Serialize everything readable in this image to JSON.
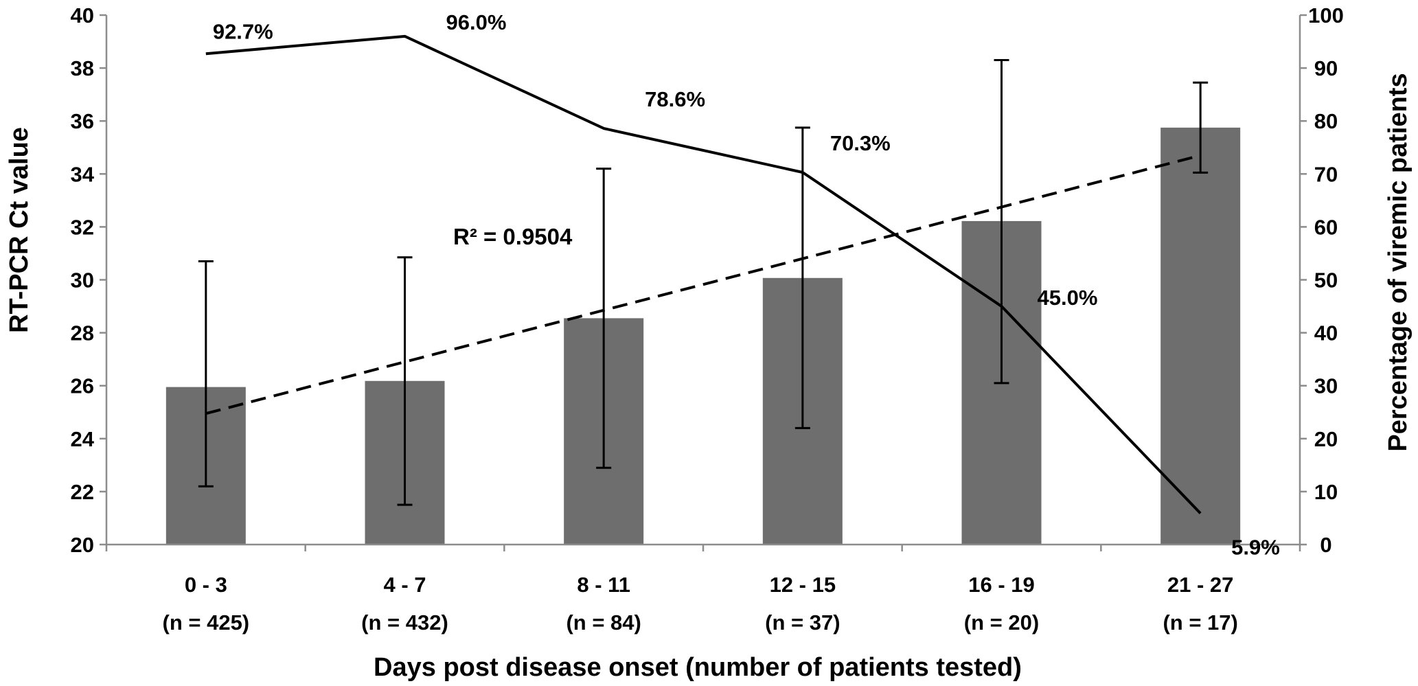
{
  "chart_data": {
    "type": "bar",
    "categories": [
      "0 - 3",
      "4 - 7",
      "8 - 11",
      "12 - 15",
      "16 - 19",
      "21 - 27"
    ],
    "category_counts": [
      "(n = 425)",
      "(n = 432)",
      "(n = 84)",
      "(n = 37)",
      "(n = 20)",
      "(n = 17)"
    ],
    "xlabel": "Days post disease onset (number of patients tested)",
    "ylabel": "RT-PCR Ct value",
    "ylim": [
      20,
      40
    ],
    "yticks": [
      20,
      22,
      24,
      26,
      28,
      30,
      32,
      34,
      36,
      38,
      40
    ],
    "y2label": "Percentage of viremic patients",
    "y2lim": [
      0,
      100
    ],
    "y2ticks": [
      0,
      10,
      20,
      30,
      40,
      50,
      60,
      70,
      80,
      90,
      100
    ],
    "bars": {
      "axis": "left",
      "color": "#6e6e6e",
      "values": [
        25.95,
        26.18,
        28.55,
        30.07,
        32.22,
        35.75
      ],
      "error_low": [
        22.2,
        21.5,
        22.9,
        24.4,
        26.1,
        34.05
      ],
      "error_high": [
        30.7,
        30.85,
        34.2,
        35.75,
        38.3,
        37.45
      ]
    },
    "percent_line": {
      "axis": "right",
      "style": "solid",
      "values": [
        92.7,
        96.0,
        78.6,
        70.3,
        45.0,
        5.9
      ],
      "labels": [
        "92.7%",
        "96.0%",
        "78.6%",
        "70.3%",
        "45.0%",
        "5.9%"
      ]
    },
    "trendline": {
      "axis": "left",
      "style": "dashed",
      "start": 24.95,
      "end": 34.7,
      "annotation": "R² = 0.9504"
    },
    "grid": false,
    "legend": "none"
  }
}
